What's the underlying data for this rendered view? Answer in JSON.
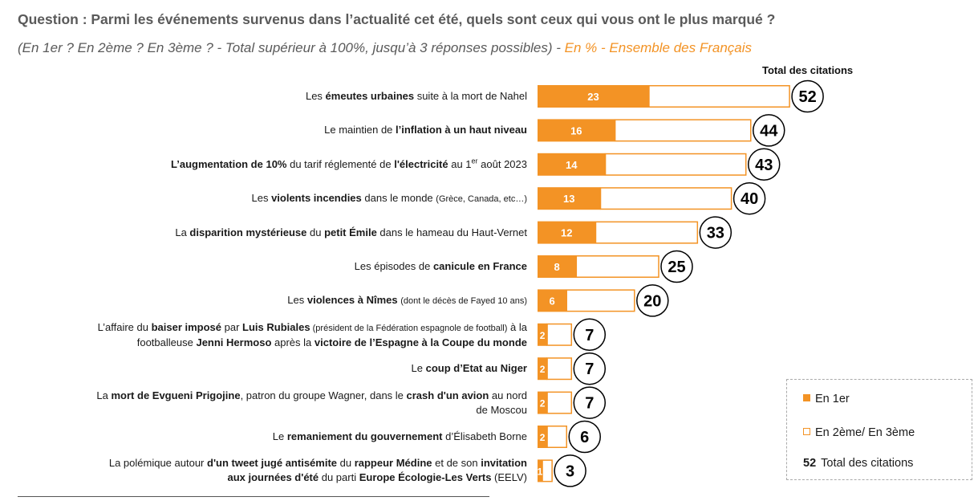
{
  "header": {
    "question": "Question : Parmi les événements survenus dans l’actualité cet été, quels sont ceux qui vous ont le plus marqué ?",
    "subtitle_main": "(En 1er ? En 2ème ? En 3ème ? - Total supérieur à 100%, jusqu’à 3 réponses possibles) - ",
    "subtitle_accent": "En % - Ensemble des Français",
    "total_header": "Total des citations"
  },
  "colors": {
    "first": "#F39325",
    "other_border": "#F39325",
    "circle": "#000000"
  },
  "legend": {
    "first_label": "En 1er",
    "other_label": "En 2ème/ En 3ème",
    "total_num": "52",
    "total_label": "Total des citations"
  },
  "chart_data": {
    "type": "bar",
    "orientation": "horizontal",
    "stacked": true,
    "xlim": [
      0,
      52
    ],
    "series": [
      {
        "name": "En 1er",
        "values": [
          23,
          16,
          14,
          13,
          12,
          8,
          6,
          2,
          2,
          2,
          2,
          1
        ]
      },
      {
        "name": "En 2ème/ En 3ème",
        "values": [
          29,
          28,
          29,
          27,
          21,
          17,
          14,
          5,
          5,
          5,
          4,
          2
        ]
      }
    ],
    "totals": [
      52,
      44,
      43,
      40,
      33,
      25,
      20,
      7,
      7,
      7,
      6,
      3
    ],
    "total_label": "Total des citations",
    "categories": [
      {
        "lines": [
          [
            [
              "Les ",
              0
            ],
            [
              "émeutes urbaines",
              1
            ],
            [
              " suite à la mort de Nahel",
              0
            ]
          ]
        ]
      },
      {
        "lines": [
          [
            [
              "Le maintien de ",
              0
            ],
            [
              "l’inflation à un haut niveau",
              1
            ]
          ]
        ]
      },
      {
        "lines": [
          [
            [
              "L’augmentation de 10%",
              1
            ],
            [
              " du tarif réglementé de ",
              0
            ],
            [
              "l'électricité",
              1
            ],
            [
              " au 1",
              0
            ],
            [
              "er",
              3
            ],
            [
              " août 2023",
              0
            ]
          ]
        ]
      },
      {
        "lines": [
          [
            [
              "Les ",
              0
            ],
            [
              "violents incendies",
              1
            ],
            [
              " dans le monde ",
              0
            ],
            [
              "(Grèce, Canada, etc…)",
              2
            ]
          ]
        ]
      },
      {
        "lines": [
          [
            [
              "La ",
              0
            ],
            [
              "disparition mystérieuse",
              1
            ],
            [
              " du ",
              0
            ],
            [
              "petit Émile",
              1
            ],
            [
              " dans le hameau du Haut-Vernet",
              0
            ]
          ]
        ]
      },
      {
        "lines": [
          [
            [
              "Les épisodes de ",
              0
            ],
            [
              "canicule en France",
              1
            ]
          ]
        ]
      },
      {
        "lines": [
          [
            [
              "Les ",
              0
            ],
            [
              "violences à Nîmes",
              1
            ],
            [
              " ",
              0
            ],
            [
              "(dont le décès de Fayed 10 ans)",
              2
            ]
          ]
        ]
      },
      {
        "lines": [
          [
            [
              "L’affaire du ",
              0
            ],
            [
              "baiser imposé",
              1
            ],
            [
              " par ",
              0
            ],
            [
              "Luis Rubiales",
              1
            ],
            [
              " (président de la Fédération espagnole de football)",
              2
            ],
            [
              " à la",
              0
            ]
          ],
          [
            [
              "footballeuse ",
              0
            ],
            [
              "Jenni Hermoso",
              1
            ],
            [
              " après la ",
              0
            ],
            [
              "victoire de l’Espagne à la Coupe du monde",
              1
            ]
          ]
        ]
      },
      {
        "lines": [
          [
            [
              "Le ",
              0
            ],
            [
              "coup d’Etat au Niger",
              1
            ]
          ]
        ]
      },
      {
        "lines": [
          [
            [
              "La ",
              0
            ],
            [
              "mort de Evgueni Prigojine",
              1
            ],
            [
              ", patron du groupe Wagner, dans le ",
              0
            ],
            [
              "crash d'un avion",
              1
            ],
            [
              " au nord",
              0
            ]
          ],
          [
            [
              "de Moscou",
              0
            ]
          ]
        ]
      },
      {
        "lines": [
          [
            [
              "Le ",
              0
            ],
            [
              "remaniement du gouvernement",
              1
            ],
            [
              " d’Élisabeth Borne",
              0
            ]
          ]
        ]
      },
      {
        "lines": [
          [
            [
              "La polémique autour ",
              0
            ],
            [
              "d'un tweet jugé antisémite",
              1
            ],
            [
              " du ",
              0
            ],
            [
              "rappeur Médine",
              1
            ],
            [
              " et de son ",
              0
            ],
            [
              "invitation",
              1
            ]
          ],
          [
            [
              "aux journées d'été",
              1
            ],
            [
              " du parti ",
              0
            ],
            [
              "Europe Écologie-Les Verts",
              1
            ],
            [
              " (EELV)",
              0
            ]
          ]
        ]
      }
    ]
  }
}
